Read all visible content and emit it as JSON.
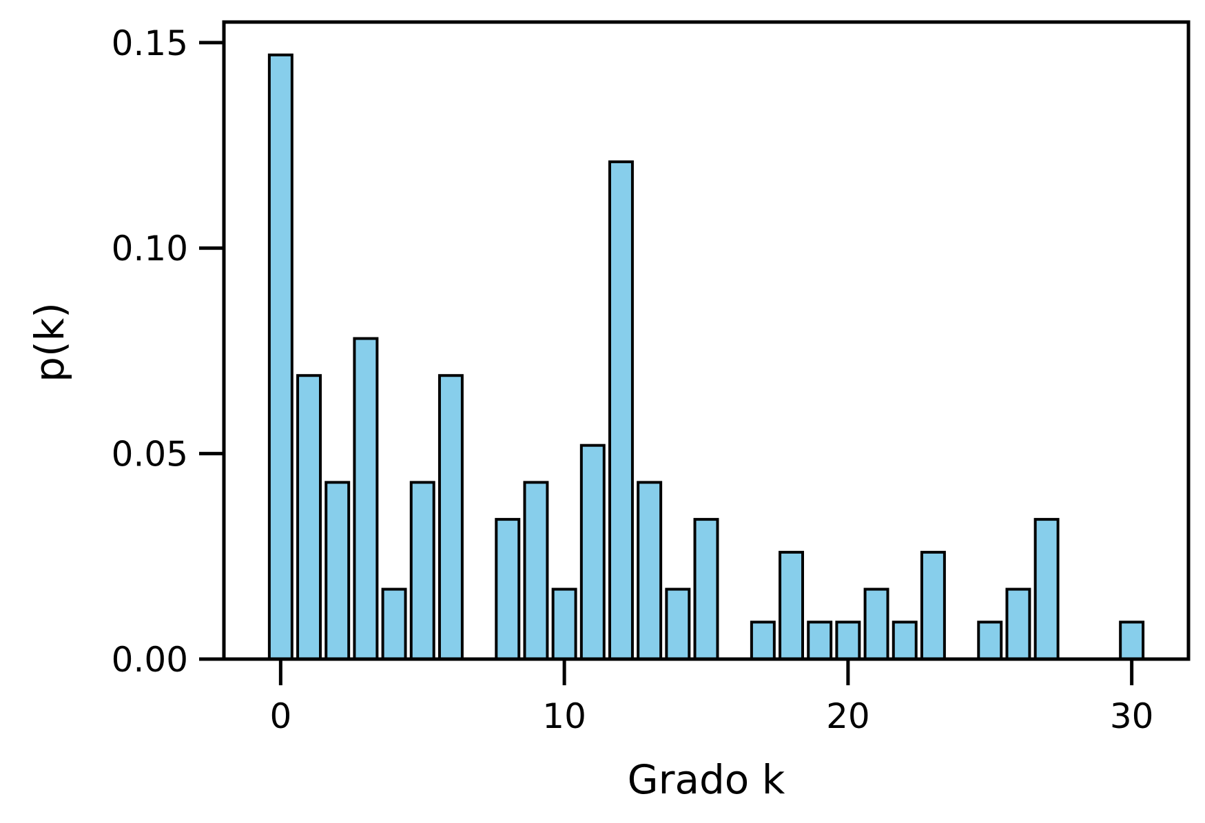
{
  "chart_data": {
    "type": "bar",
    "title": "",
    "xlabel": "Grado k",
    "ylabel": "p(k)",
    "x": [
      0,
      1,
      2,
      3,
      4,
      5,
      6,
      8,
      9,
      10,
      11,
      12,
      13,
      14,
      15,
      17,
      18,
      19,
      20,
      21,
      22,
      23,
      25,
      26,
      27,
      30
    ],
    "values": [
      0.147,
      0.069,
      0.043,
      0.078,
      0.017,
      0.043,
      0.069,
      0.034,
      0.043,
      0.017,
      0.052,
      0.121,
      0.043,
      0.017,
      0.034,
      0.009,
      0.026,
      0.009,
      0.009,
      0.017,
      0.009,
      0.026,
      0.009,
      0.017,
      0.034,
      0.009
    ],
    "xlim": [
      -2,
      32
    ],
    "ylim": [
      0,
      0.155
    ],
    "xticks": [
      0,
      10,
      20,
      30
    ],
    "xtick_labels": [
      "0",
      "10",
      "20",
      "30"
    ],
    "yticks": [
      0,
      0.05,
      0.1,
      0.15
    ],
    "ytick_labels": [
      "0.00",
      "0.05",
      "0.10",
      "0.15"
    ],
    "bar_color": "#87CEEB",
    "edge_color": "#000000",
    "grid": false,
    "legend": "none"
  }
}
